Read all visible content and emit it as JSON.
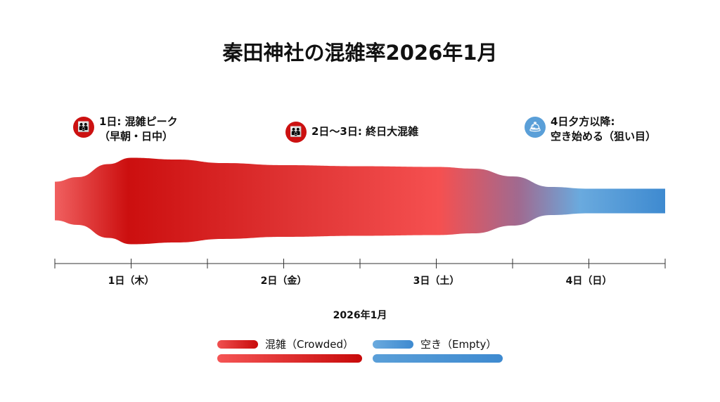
{
  "chart_data": {
    "type": "area",
    "title": "秦田神社の混雑率2026年1月",
    "xlabel": "2026年1月",
    "ylabel": "",
    "xlim": [
      0.5,
      4.5
    ],
    "tick_labels": [
      {
        "x": 1,
        "label": "1日（木）"
      },
      {
        "x": 2,
        "label": "2日（金）"
      },
      {
        "x": 3,
        "label": "3日（土）"
      },
      {
        "x": 4,
        "label": "4日（日）"
      }
    ],
    "x": [
      0.5,
      0.65,
      0.85,
      1.0,
      1.3,
      1.6,
      2.0,
      2.5,
      3.0,
      3.25,
      3.5,
      3.75,
      4.0,
      4.5
    ],
    "crowding": [
      55,
      68,
      105,
      123,
      118,
      108,
      102,
      99,
      97,
      92,
      70,
      40,
      35,
      35
    ],
    "annotations": [
      {
        "x": 1,
        "line1": "1日: 混雑ピーク",
        "line2": "（早朝・日中）",
        "icon": "crowd-icon",
        "color": "#cc1111"
      },
      {
        "x": 2.5,
        "line1": "2日〜3日: 終日大混雑",
        "line2": "",
        "icon": "crowd-icon",
        "color": "#cc1111"
      },
      {
        "x": 4,
        "line1": "4日夕方以降:",
        "line2": "空き始める（狙い目）",
        "icon": "bell-icon",
        "color": "#5a9fd8"
      }
    ],
    "legend": [
      {
        "label": "混雑（Crowded）",
        "color": "#d81010"
      },
      {
        "label": "空き（Empty）",
        "color": "#5a9fd8"
      }
    ],
    "legend_placement": "bottom-center"
  }
}
